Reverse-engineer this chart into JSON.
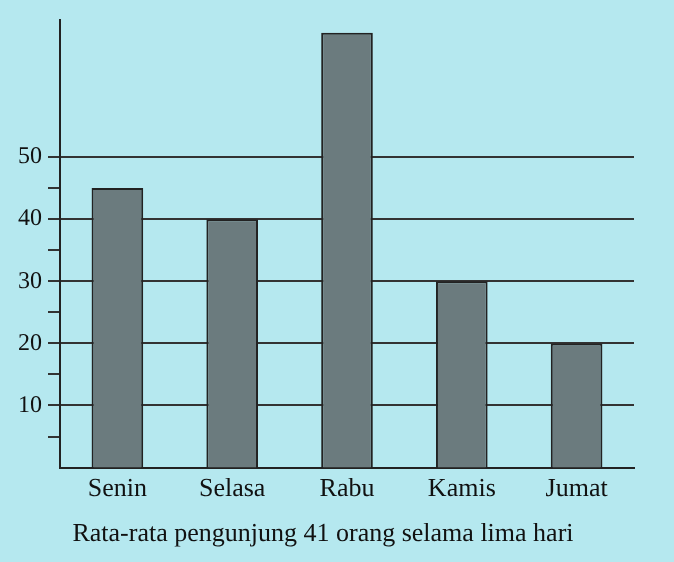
{
  "chart_data": {
    "type": "bar",
    "title": "Rata-rata pengunjung 41 orang selama lima hari",
    "categories": [
      "Senin",
      "Selasa",
      "Rabu",
      "Kamis",
      "Jumat"
    ],
    "values": [
      45,
      40,
      70,
      30,
      20
    ],
    "color": "#6b7b7e",
    "ylim": [
      0,
      72
    ],
    "yticks": [
      {
        "value": 5,
        "label": null
      },
      10,
      {
        "value": 15,
        "label": null
      },
      20,
      {
        "value": 25,
        "label": null
      },
      30,
      {
        "value": 35,
        "label": null
      },
      40,
      {
        "value": 45,
        "label": null
      },
      50
    ],
    "grid": "y",
    "legend": false
  }
}
